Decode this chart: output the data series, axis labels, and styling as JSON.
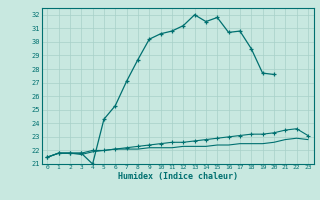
{
  "xlabel": "Humidex (Indice chaleur)",
  "bg_color": "#c8e8e0",
  "line_color": "#007070",
  "grid_color": "#a8d0c8",
  "xlim": [
    -0.5,
    23.5
  ],
  "ylim": [
    21,
    32.5
  ],
  "yticks": [
    21,
    22,
    23,
    24,
    25,
    26,
    27,
    28,
    29,
    30,
    31,
    32
  ],
  "xticks": [
    0,
    1,
    2,
    3,
    4,
    5,
    6,
    7,
    8,
    9,
    10,
    11,
    12,
    13,
    14,
    15,
    16,
    17,
    18,
    19,
    20,
    21,
    22,
    23
  ],
  "curve1_x": [
    0,
    1,
    2,
    3,
    4,
    5,
    6,
    7,
    8,
    9,
    10,
    11,
    12,
    13,
    14,
    15,
    16,
    17,
    18,
    19,
    20
  ],
  "curve1_y": [
    21.5,
    21.8,
    21.8,
    21.8,
    21.0,
    24.3,
    25.3,
    27.1,
    28.7,
    30.2,
    30.6,
    30.8,
    31.2,
    32.0,
    31.5,
    31.8,
    30.7,
    30.8,
    29.5,
    27.7,
    27.6
  ],
  "curve2_x": [
    0,
    1,
    2,
    3,
    4,
    5,
    6,
    7,
    8,
    9,
    10,
    11,
    12,
    13,
    14,
    15,
    16,
    17,
    18,
    19,
    20,
    21,
    22,
    23
  ],
  "curve2_y": [
    21.5,
    21.8,
    21.8,
    21.8,
    22.0,
    22.0,
    22.1,
    22.2,
    22.3,
    22.4,
    22.5,
    22.6,
    22.6,
    22.7,
    22.8,
    22.9,
    23.0,
    23.1,
    23.2,
    23.2,
    23.3,
    23.5,
    23.6,
    23.1
  ],
  "curve3_x": [
    0,
    1,
    2,
    3,
    4,
    5,
    6,
    7,
    8,
    9,
    10,
    11,
    12,
    13,
    14,
    15,
    16,
    17,
    18,
    19,
    20,
    21,
    22,
    23
  ],
  "curve3_y": [
    21.5,
    21.8,
    21.8,
    21.7,
    21.9,
    22.0,
    22.1,
    22.1,
    22.1,
    22.2,
    22.2,
    22.2,
    22.3,
    22.3,
    22.3,
    22.4,
    22.4,
    22.5,
    22.5,
    22.5,
    22.6,
    22.8,
    22.9,
    22.8
  ]
}
